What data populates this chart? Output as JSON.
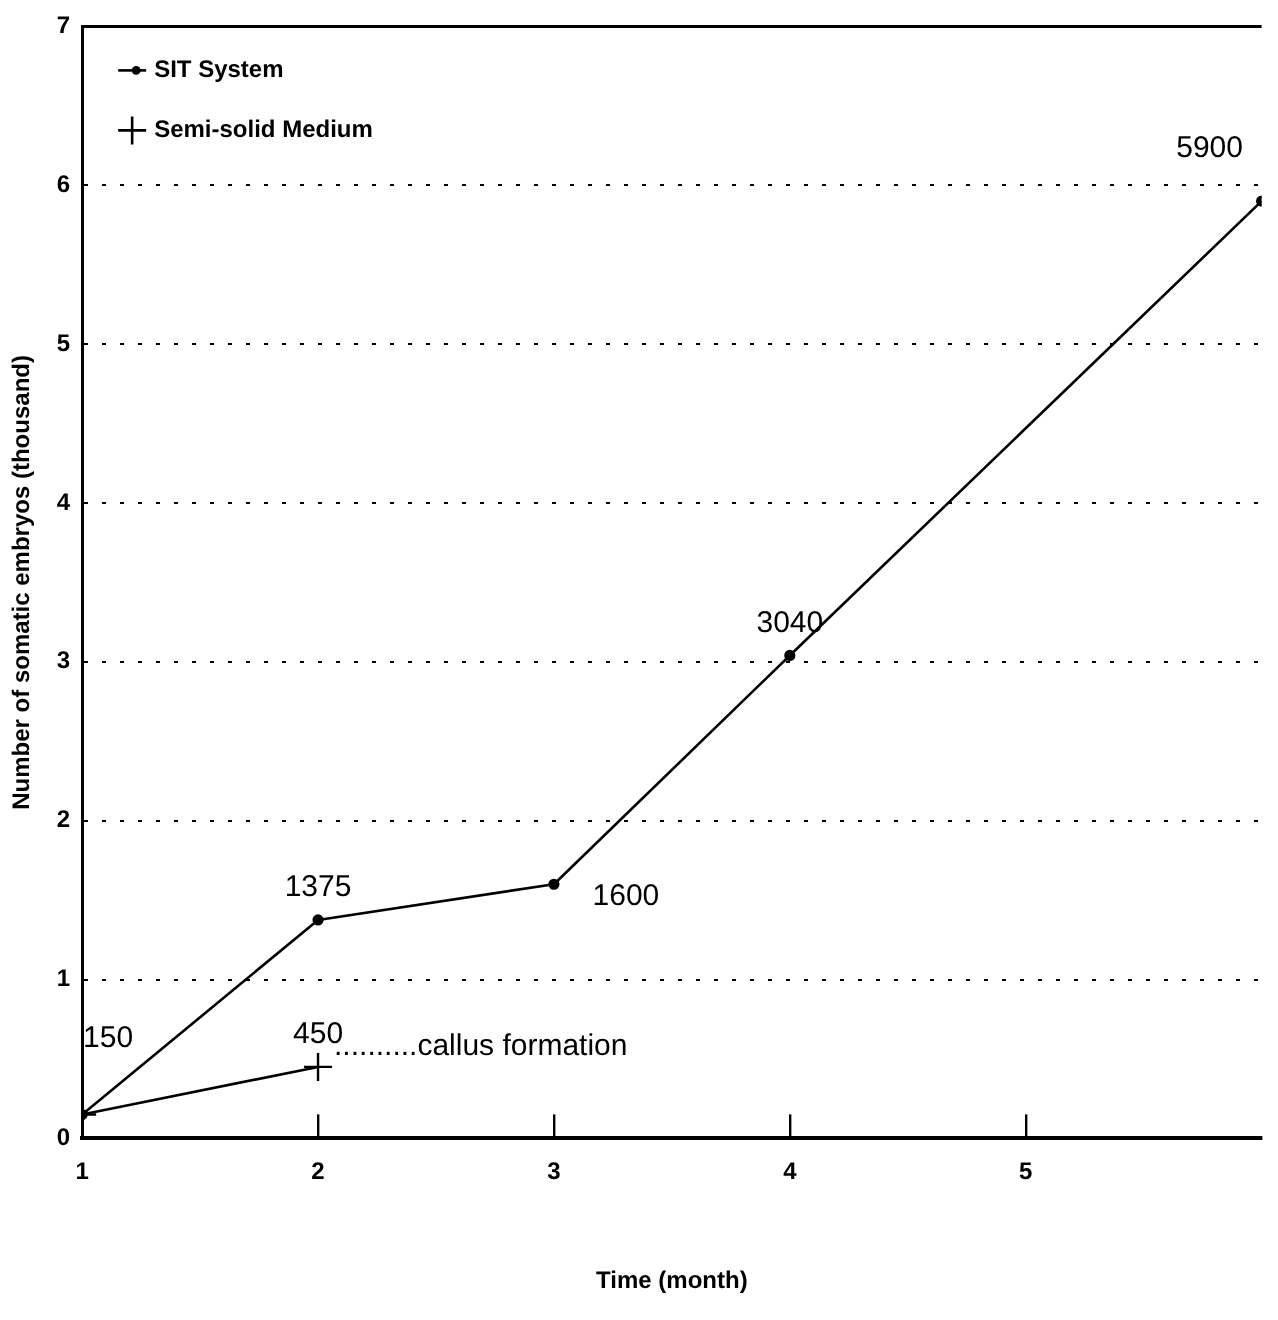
{
  "chart_data": {
    "type": "line",
    "xlabel": "Time (month)",
    "ylabel": "Number of somatic embryos (thousand)",
    "x": [
      1,
      2,
      3,
      4,
      6
    ],
    "series": [
      {
        "name": "SIT System",
        "color": "#000000",
        "marker": "circle",
        "values": [
          0.15,
          1.375,
          1.6,
          3.04,
          5.9
        ]
      },
      {
        "name": "Semi-solid Medium",
        "color": "#000000",
        "marker": "cross",
        "x": [
          1,
          2
        ],
        "values": [
          0.15,
          0.45
        ]
      }
    ],
    "xlim": [
      1,
      6
    ],
    "xticks": [
      1,
      2,
      3,
      4,
      5
    ],
    "ylim": [
      0,
      7
    ],
    "yticks": [
      0,
      1,
      2,
      3,
      4,
      5,
      6,
      7
    ],
    "grid": "y",
    "legend": "top left",
    "line_style": "solid",
    "annotations": [
      {
        "text": "150",
        "x": 1,
        "y": 0.15
      },
      {
        "text": "1375",
        "x": 2,
        "y": 1.375
      },
      {
        "text": "1600",
        "x": 3,
        "y": 1.6
      },
      {
        "text": "3040",
        "x": 4,
        "y": 3.04
      },
      {
        "text": "5900",
        "x": 6,
        "y": 5.9
      },
      {
        "text": "450",
        "x": 2,
        "y": 0.45
      },
      {
        "text": "..........callus formation",
        "x": 2,
        "y": 0.45
      }
    ]
  }
}
